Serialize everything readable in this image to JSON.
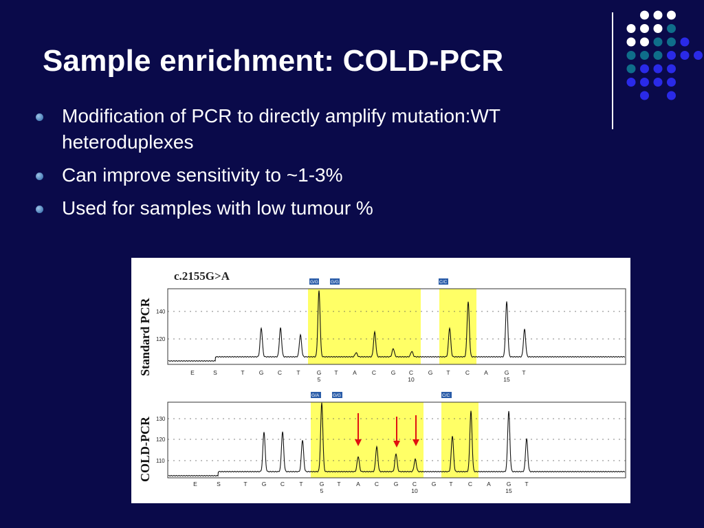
{
  "slide": {
    "title": "Sample enrichment: COLD-PCR",
    "bullets": [
      "Modification of PCR to directly amplify mutation:WT heteroduplexes",
      "Can improve sensitivity to ~1-3%",
      "Used for samples with low tumour %"
    ]
  },
  "colors": {
    "background": "#0a0a4a",
    "title": "#ffffff",
    "bullet_text": "#ffffff",
    "highlight": "#ffff66",
    "arrow": "#e01010",
    "dot_white": "#ffffff",
    "dot_teal": "#0f6e8a",
    "dot_blue": "#2a2ae8"
  },
  "figure": {
    "mutation": "c.2155G>A",
    "panels": [
      {
        "label": "Standard PCR",
        "y_ticks": [
          "140",
          "120"
        ],
        "tags": [
          "G/G",
          "G/G",
          "C/C"
        ],
        "bases": [
          "E",
          "S",
          "T",
          "G",
          "C",
          "T",
          "G",
          "T",
          "A",
          "C",
          "G",
          "C",
          "G",
          "T",
          "C",
          "A",
          "G",
          "T"
        ],
        "positions": [
          "5",
          "10",
          "15"
        ]
      },
      {
        "label": "COLD-PCR",
        "y_ticks": [
          "130",
          "120",
          "110"
        ],
        "tags": [
          "G/A",
          "G/G",
          "C/C"
        ],
        "bases": [
          "E",
          "S",
          "T",
          "G",
          "C",
          "T",
          "G",
          "T",
          "A",
          "C",
          "G",
          "C",
          "G",
          "T",
          "C",
          "A",
          "G",
          "T"
        ],
        "positions": [
          "5",
          "10",
          "15"
        ]
      }
    ]
  }
}
